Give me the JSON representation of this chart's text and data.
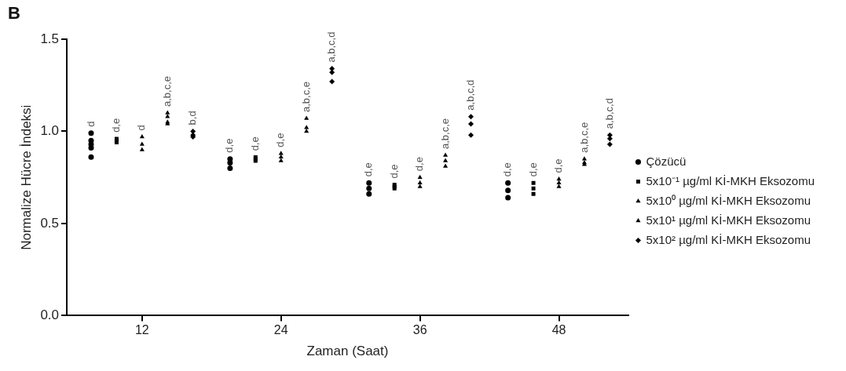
{
  "chart_data": {
    "type": "scatter",
    "xlabel": "Zaman (Saat)",
    "ylabel": "Normalize Hücre İndeksi",
    "xlim": [
      5.5,
      54
    ],
    "xticks": [
      12,
      24,
      36,
      48
    ],
    "ylim": [
      0,
      1.5
    ],
    "yticks": [
      {
        "value": 0,
        "label": "0.0"
      },
      {
        "value": 0.5,
        "label": "0.5"
      },
      {
        "value": 1,
        "label": "1.0"
      },
      {
        "value": 1.5,
        "label": "1.5"
      }
    ],
    "grid": false,
    "legend": "right",
    "series": [
      {
        "name": "Çözücü",
        "color": "#000000",
        "marker": "circle",
        "x": [
          7.6,
          7.6,
          7.6,
          7.6,
          7.6,
          19.6,
          19.6,
          19.6,
          31.6,
          31.6,
          31.6,
          43.6,
          43.6,
          43.6
        ],
        "values": [
          0.99,
          0.95,
          0.93,
          0.91,
          0.86,
          0.85,
          0.83,
          0.8,
          0.72,
          0.69,
          0.66,
          0.72,
          0.68,
          0.64
        ]
      },
      {
        "name": "5x10⁻¹ µg/ml Kİ-MKH Eksozomu",
        "color": "#000000",
        "marker": "square",
        "x": [
          9.8,
          9.8,
          9.8,
          21.8,
          21.8,
          21.8,
          33.8,
          33.8,
          33.8,
          45.8,
          45.8,
          45.8
        ],
        "values": [
          0.96,
          0.95,
          0.94,
          0.86,
          0.85,
          0.84,
          0.71,
          0.7,
          0.69,
          0.72,
          0.69,
          0.66
        ]
      },
      {
        "name": "5x10⁰ µg/ml Kİ-MKH Eksozomu",
        "color": "#000000",
        "marker": "triangle",
        "x": [
          12,
          12,
          12,
          24,
          24,
          24,
          36,
          36,
          36,
          48,
          48,
          48
        ],
        "values": [
          0.97,
          0.93,
          0.9,
          0.88,
          0.86,
          0.84,
          0.75,
          0.72,
          0.7,
          0.74,
          0.72,
          0.7
        ]
      },
      {
        "name": "5x10¹ µg/ml Kİ-MKH Eksozomu",
        "color": "#000000",
        "marker": "triangle",
        "x": [
          14.2,
          14.2,
          14.2,
          14.2,
          26.2,
          26.2,
          26.2,
          38.2,
          38.2,
          38.2,
          50.2,
          50.2,
          50.2
        ],
        "values": [
          1.1,
          1.08,
          1.05,
          1.04,
          1.07,
          1.02,
          1.0,
          0.87,
          0.84,
          0.81,
          0.85,
          0.83,
          0.82
        ]
      },
      {
        "name": "5x10² µg/ml Kİ-MKH Eksozomu",
        "color": "#000000",
        "marker": "diamond",
        "x": [
          16.4,
          16.4,
          16.4,
          28.4,
          28.4,
          28.4,
          40.4,
          40.4,
          40.4,
          52.4,
          52.4,
          52.4
        ],
        "values": [
          1.0,
          0.98,
          0.97,
          1.34,
          1.32,
          1.27,
          1.08,
          1.04,
          0.98,
          0.98,
          0.96,
          0.93
        ]
      }
    ],
    "annotations": [
      "B",
      {
        "text": "d",
        "x": 7.6,
        "y": 0.99
      },
      {
        "text": "d,e",
        "x": 9.8,
        "y": 0.96
      },
      {
        "text": "d",
        "x": 12,
        "y": 0.97
      },
      {
        "text": "a,b,c,e",
        "x": 14.2,
        "y": 1.1
      },
      {
        "text": "b,d",
        "x": 16.4,
        "y": 1.0
      },
      {
        "text": "d,e",
        "x": 19.6,
        "y": 0.85
      },
      {
        "text": "d,e",
        "x": 21.8,
        "y": 0.86
      },
      {
        "text": "d,e",
        "x": 24,
        "y": 0.88
      },
      {
        "text": "a,b,c,e",
        "x": 26.2,
        "y": 1.07
      },
      {
        "text": "a,b,c,d",
        "x": 28.4,
        "y": 1.34
      },
      {
        "text": "d,e",
        "x": 31.6,
        "y": 0.72
      },
      {
        "text": "d,e",
        "x": 33.8,
        "y": 0.71
      },
      {
        "text": "d,e",
        "x": 36,
        "y": 0.75
      },
      {
        "text": "a,b,c,e",
        "x": 38.2,
        "y": 0.87
      },
      {
        "text": "a,b,c,d",
        "x": 40.4,
        "y": 1.08
      },
      {
        "text": "d,e",
        "x": 43.6,
        "y": 0.72
      },
      {
        "text": "d,e",
        "x": 45.8,
        "y": 0.72
      },
      {
        "text": "d,e",
        "x": 48,
        "y": 0.74
      },
      {
        "text": "a,b,c,e",
        "x": 50.2,
        "y": 0.85
      },
      {
        "text": "a,b,c,d",
        "x": 52.4,
        "y": 0.98
      }
    ]
  }
}
